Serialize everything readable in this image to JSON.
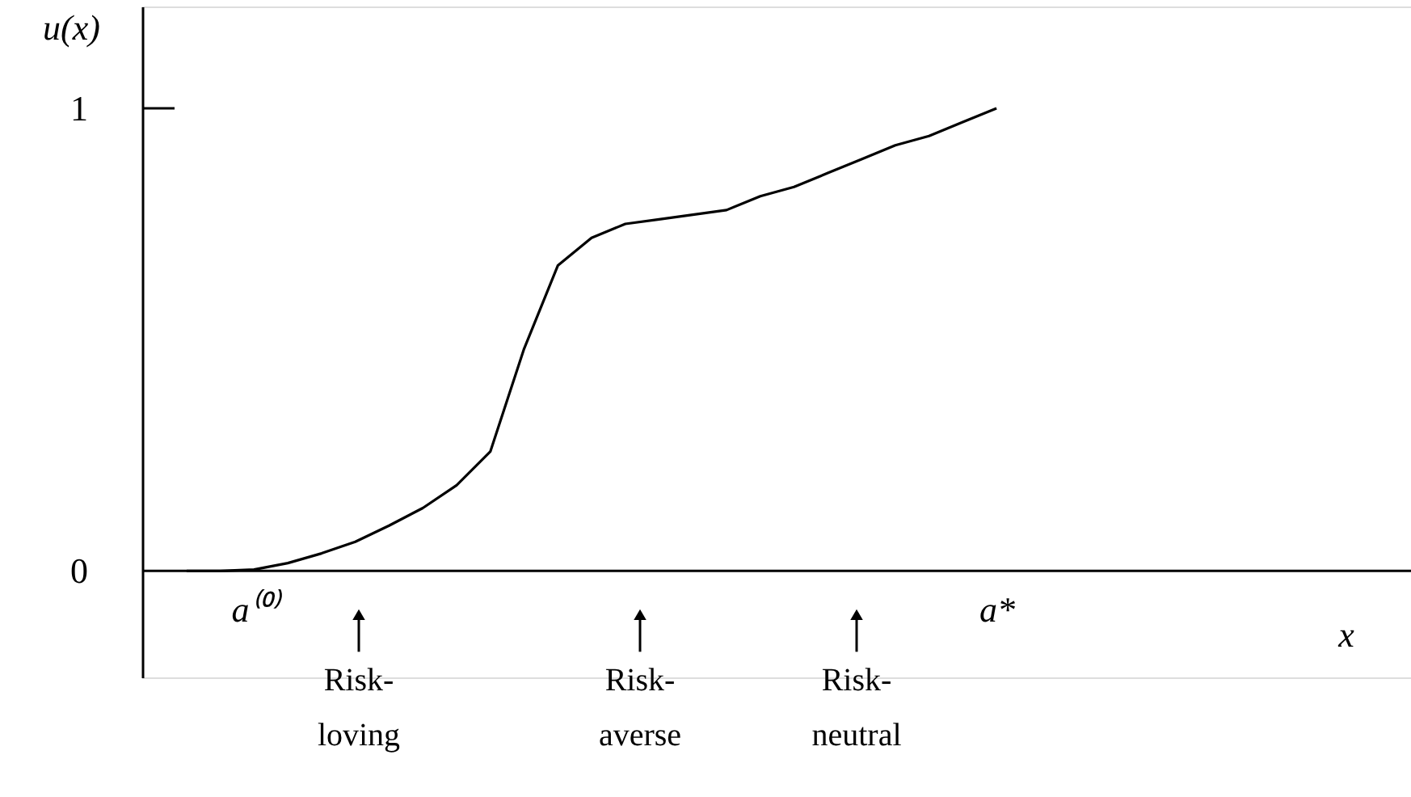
{
  "chart_data": {
    "type": "line",
    "ylabel": "u(x)",
    "color": "#000000",
    "categories": [
      null,
      null,
      "a⁽⁰⁾",
      null,
      null,
      null,
      null,
      null,
      null,
      null,
      null,
      null,
      null,
      null,
      null,
      null,
      null,
      null,
      null,
      null,
      null,
      null,
      null,
      null,
      "a*"
    ],
    "values": [
      0,
      0,
      0.003,
      0.017,
      0.038,
      0.063,
      0.098,
      0.136,
      0.185,
      0.258,
      0.48,
      0.66,
      0.72,
      0.75,
      0.76,
      0.77,
      0.78,
      0.81,
      0.83,
      0.86,
      0.89,
      0.92,
      0.94,
      0.97,
      1.0
    ],
    "ylim": [
      -0.23,
      1.22
    ],
    "yticks": [
      0,
      1
    ],
    "annotations": [
      "Risk-\nloving",
      "Risk-\naverse",
      "Risk-\nneutral",
      "x"
    ],
    "grid": false
  }
}
